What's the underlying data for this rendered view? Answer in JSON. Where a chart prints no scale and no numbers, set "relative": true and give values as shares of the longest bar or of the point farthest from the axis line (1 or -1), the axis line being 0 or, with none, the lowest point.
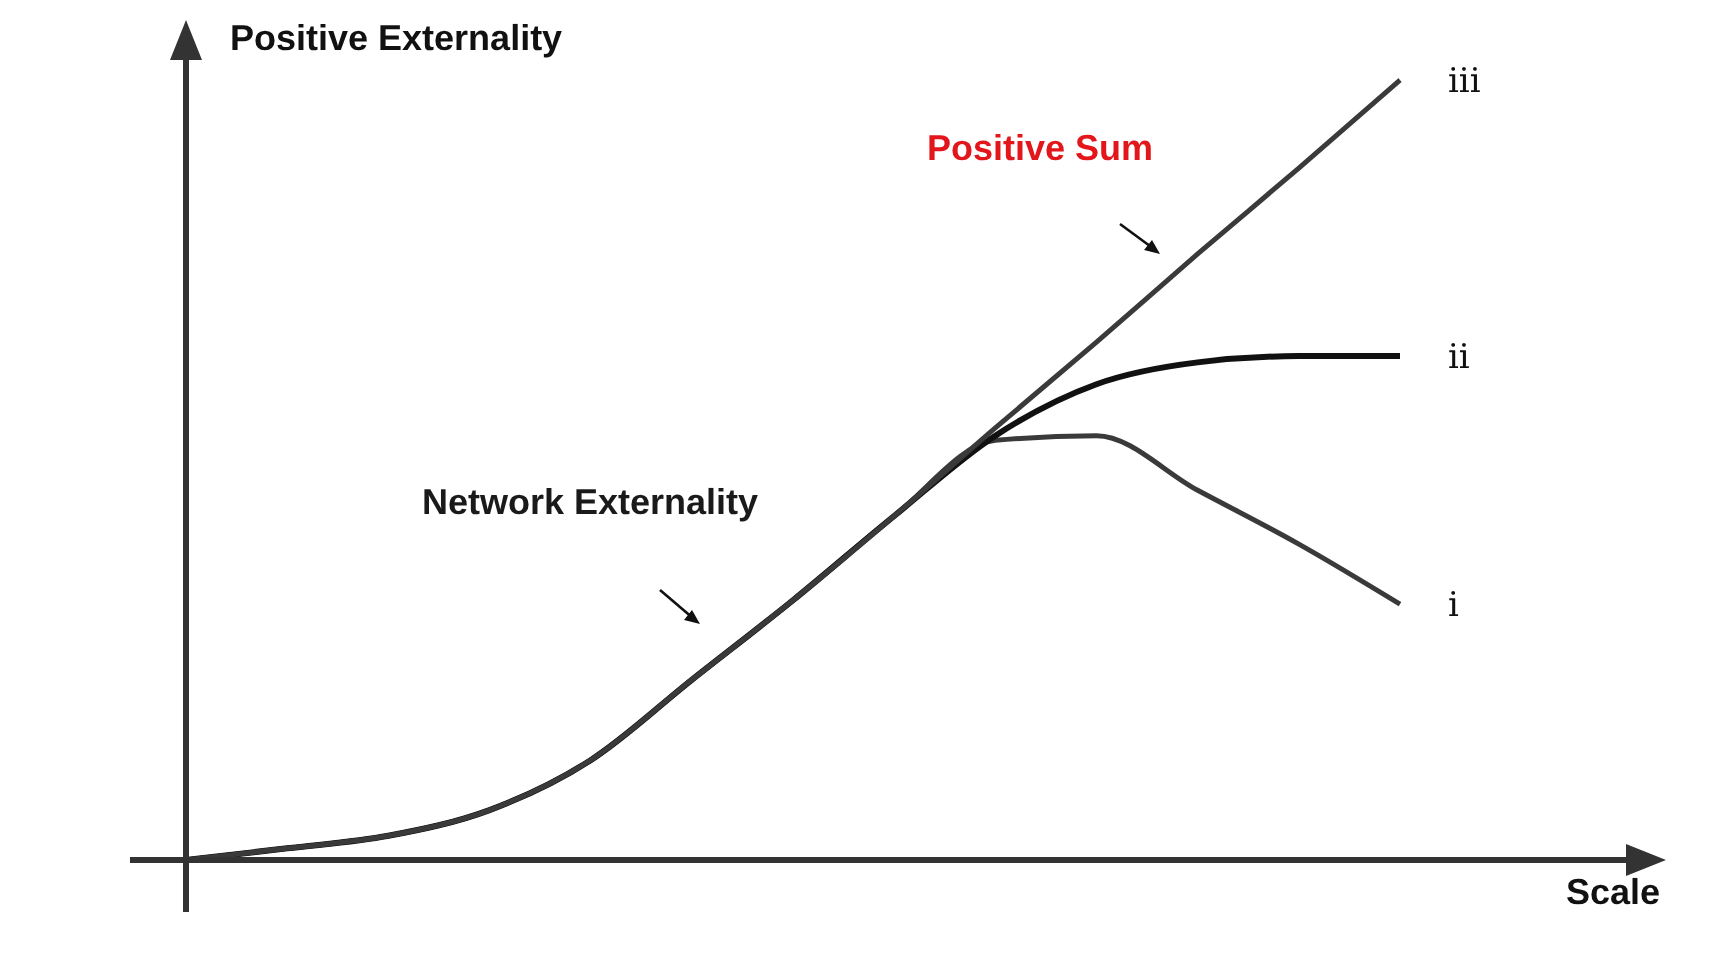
{
  "chart_data": {
    "type": "line",
    "relative": true,
    "xlabel": "Scale",
    "ylabel": "Positive Externality",
    "annotations": [
      "Positive Sum",
      "Network Externality"
    ],
    "categories": [
      null,
      null,
      null,
      null,
      null,
      null,
      null,
      null,
      null,
      null,
      null,
      null,
      null
    ],
    "series": [
      {
        "name": "i",
        "color": "#3a3a3a",
        "values": [
          0,
          0.015,
          0.031,
          0.064,
          0.128,
          0.231,
          0.333,
          0.441,
          0.538,
          0.544,
          0.474,
          0.405,
          0.328
        ]
      },
      {
        "name": "ii",
        "color": "#111111",
        "values": [
          0,
          0.015,
          0.031,
          0.064,
          0.128,
          0.231,
          0.333,
          0.441,
          0.544,
          0.61,
          0.638,
          0.646,
          0.646
        ]
      },
      {
        "name": "iii",
        "color": "#3a3a3a",
        "values": [
          0,
          0.015,
          0.031,
          0.064,
          0.128,
          0.231,
          0.333,
          0.441,
          0.554,
          0.664,
          0.777,
          0.887,
          1
        ]
      }
    ]
  }
}
